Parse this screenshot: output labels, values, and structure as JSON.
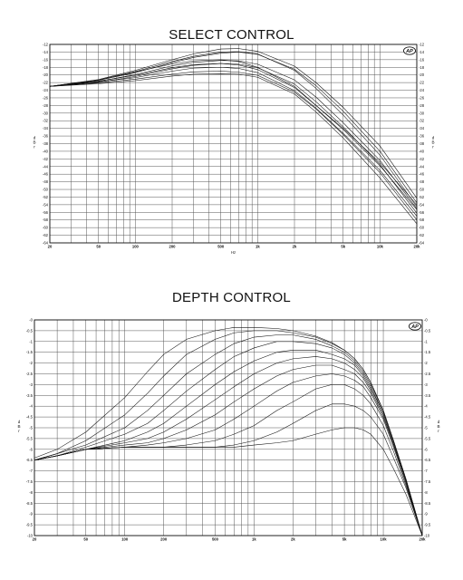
{
  "chart_data": [
    {
      "type": "line",
      "title": "SELECT CONTROL",
      "xlabel": "Hz",
      "ylabel": "dBr",
      "xscale": "log",
      "xlim": [
        20,
        20000
      ],
      "ylim": [
        -64,
        -12
      ],
      "grid": true,
      "logo": "AP",
      "y_ticks": [
        -12,
        -14,
        -16,
        -18,
        -20,
        -22,
        -24,
        -26,
        -28,
        -30,
        -32,
        -34,
        -36,
        -38,
        -40,
        -42,
        -44,
        -46,
        -48,
        -50,
        -52,
        -54,
        -56,
        -58,
        -60,
        -62,
        -64
      ],
      "x_ticks": [
        {
          "v": 20,
          "label": "20"
        },
        {
          "v": 50,
          "label": "50"
        },
        {
          "v": 100,
          "label": "100"
        },
        {
          "v": 200,
          "label": "200"
        },
        {
          "v": 500,
          "label": "500"
        },
        {
          "v": 1000,
          "label": "1k"
        },
        {
          "v": 2000,
          "label": "2k"
        },
        {
          "v": 5000,
          "label": "5k"
        },
        {
          "v": 10000,
          "label": "10k"
        },
        {
          "v": 20000,
          "label": "20k"
        }
      ],
      "series": [
        {
          "x": [
            20,
            50,
            100,
            200,
            300,
            500,
            700,
            1000,
            2000,
            3000,
            5000,
            10000,
            20000
          ],
          "y": [
            -23,
            -21.3,
            -19.2,
            -17.1,
            -16.3,
            -16.0,
            -16.5,
            -18.0,
            -23.0,
            -28.0,
            -34.0,
            -43.0,
            -54.0
          ]
        },
        {
          "x": [
            20,
            50,
            100,
            200,
            300,
            500,
            700,
            1000,
            2000,
            3000,
            5000,
            10000,
            20000
          ],
          "y": [
            -23,
            -21.6,
            -20.1,
            -18.1,
            -17.3,
            -17.0,
            -17.4,
            -18.6,
            -23.3,
            -28.0,
            -34.3,
            -43.8,
            -55.3
          ]
        },
        {
          "x": [
            20,
            50,
            100,
            200,
            300,
            500,
            700,
            1000,
            2000,
            3000,
            5000,
            10000,
            20000
          ],
          "y": [
            -23,
            -21.8,
            -20.7,
            -19.0,
            -18.2,
            -18.0,
            -18.3,
            -19.4,
            -24.1,
            -28.7,
            -35.3,
            -45.0,
            -57.0
          ]
        },
        {
          "x": [
            20,
            50,
            100,
            200,
            300,
            500,
            700,
            1000,
            2000,
            3000,
            5000,
            10000,
            20000
          ],
          "y": [
            -23,
            -22.1,
            -21.1,
            -19.8,
            -19.2,
            -19.0,
            -19.3,
            -20.1,
            -24.5,
            -28.9,
            -35.6,
            -45.6,
            -58.0
          ]
        },
        {
          "x": [
            20,
            50,
            100,
            200,
            300,
            500,
            700,
            1000,
            2000,
            3000,
            5000,
            10000,
            20000
          ],
          "y": [
            -23,
            -22.3,
            -21.5,
            -20.3,
            -19.8,
            -19.7,
            -19.8,
            -20.6,
            -25.0,
            -29.7,
            -36.5,
            -47.0,
            -59.0
          ]
        },
        {
          "x": [
            20,
            50,
            100,
            200,
            300,
            500,
            700,
            1000,
            2000,
            3000,
            5000,
            10000,
            20000
          ],
          "y": [
            -23,
            -21.4,
            -19.4,
            -16.8,
            -15.4,
            -14.3,
            -14.0,
            -14.6,
            -18.5,
            -22.8,
            -29.5,
            -40.0,
            -53.5
          ]
        },
        {
          "x": [
            20,
            50,
            100,
            200,
            300,
            500,
            700,
            1000,
            2000,
            3000,
            5000,
            10000,
            20000
          ],
          "y": [
            -23,
            -21.2,
            -18.8,
            -16.0,
            -14.5,
            -13.2,
            -13.1,
            -13.8,
            -17.7,
            -22.0,
            -28.5,
            -38.6,
            -52.3
          ]
        },
        {
          "x": [
            20,
            50,
            100,
            200,
            300,
            500,
            700,
            1000,
            2000,
            3000,
            5000,
            10000,
            20000
          ],
          "y": [
            -23,
            -21.3,
            -19.1,
            -16.5,
            -15.1,
            -14.0,
            -13.9,
            -14.5,
            -18.8,
            -23.5,
            -30.5,
            -41.0,
            -54.5
          ]
        },
        {
          "x": [
            20,
            50,
            100,
            200,
            300,
            500,
            700,
            1000,
            2000,
            3000,
            5000,
            10000,
            20000
          ],
          "y": [
            -23,
            -21.9,
            -20.4,
            -18.4,
            -17.5,
            -17.0,
            -17.2,
            -18.1,
            -22.4,
            -27.0,
            -33.6,
            -43.5,
            -56.2
          ]
        },
        {
          "x": [
            20,
            50,
            100,
            200,
            300,
            500,
            700,
            1000,
            2000,
            3000,
            5000,
            10000,
            20000
          ],
          "y": [
            -23,
            -21.7,
            -19.9,
            -17.6,
            -16.7,
            -16.2,
            -16.3,
            -17.2,
            -21.3,
            -25.8,
            -32.5,
            -42.4,
            -55.0
          ]
        }
      ]
    },
    {
      "type": "line",
      "title": "DEPTH CONTROL",
      "xlabel": "",
      "ylabel": "dBr",
      "xscale": "log",
      "xlim": [
        20,
        20000
      ],
      "ylim": [
        -10,
        0
      ],
      "grid": true,
      "logo": "AP",
      "y_ticks": [
        {
          "v": 0,
          "label": "-0"
        },
        {
          "v": -0.5,
          "label": "-0.5"
        },
        {
          "v": -1,
          "label": "-1"
        },
        {
          "v": -1.5,
          "label": "-1.5"
        },
        {
          "v": -2,
          "label": "-2"
        },
        {
          "v": -2.5,
          "label": "-2.5"
        },
        {
          "v": -3,
          "label": "-3"
        },
        {
          "v": -3.5,
          "label": "-3.5"
        },
        {
          "v": -4,
          "label": "-4"
        },
        {
          "v": -4.5,
          "label": "-4.5"
        },
        {
          "v": -5,
          "label": "-5"
        },
        {
          "v": -5.5,
          "label": "-5.5"
        },
        {
          "v": -6,
          "label": "-6"
        },
        {
          "v": -6.5,
          "label": "-6.5"
        },
        {
          "v": -7,
          "label": "-7"
        },
        {
          "v": -7.5,
          "label": "-7.5"
        },
        {
          "v": -8,
          "label": "-8"
        },
        {
          "v": -8.5,
          "label": "-8.5"
        },
        {
          "v": -9,
          "label": "-9"
        },
        {
          "v": -9.5,
          "label": "-9.5"
        },
        {
          "v": -10,
          "label": "-10"
        }
      ],
      "x_ticks": [
        {
          "v": 20,
          "label": "20"
        },
        {
          "v": 50,
          "label": "50"
        },
        {
          "v": 100,
          "label": "100"
        },
        {
          "v": 200,
          "label": "200"
        },
        {
          "v": 500,
          "label": "500"
        },
        {
          "v": 1000,
          "label": "1k"
        },
        {
          "v": 2000,
          "label": "2k"
        },
        {
          "v": 5000,
          "label": "5k"
        },
        {
          "v": 10000,
          "label": "10k"
        },
        {
          "v": 20000,
          "label": "20k"
        }
      ],
      "series": [
        {
          "x": [
            20,
            30,
            50,
            100,
            150,
            200,
            300,
            500,
            700,
            1000,
            1500,
            2000,
            3000,
            4000,
            5000,
            6000,
            7000,
            8000,
            10000,
            12000,
            15000,
            20000
          ],
          "y": [
            -6.5,
            -6.3,
            -6.0,
            -5.9,
            -5.9,
            -5.9,
            -5.9,
            -5.9,
            -5.9,
            -5.8,
            -5.7,
            -5.6,
            -5.3,
            -5.1,
            -5.0,
            -5.0,
            -5.1,
            -5.3,
            -6.0,
            -6.9,
            -8.1,
            -10.0
          ]
        },
        {
          "x": [
            20,
            30,
            50,
            100,
            150,
            200,
            300,
            500,
            700,
            1000,
            1500,
            2000,
            3000,
            4000,
            5000,
            6000,
            7000,
            8000,
            10000,
            12000,
            15000,
            20000
          ],
          "y": [
            -6.5,
            -6.3,
            -6.0,
            -5.9,
            -5.9,
            -5.9,
            -5.9,
            -5.9,
            -5.8,
            -5.6,
            -5.2,
            -4.8,
            -4.2,
            -3.9,
            -3.9,
            -4.0,
            -4.2,
            -4.5,
            -5.3,
            -6.4,
            -7.8,
            -10.0
          ]
        },
        {
          "x": [
            20,
            30,
            50,
            100,
            150,
            200,
            300,
            500,
            700,
            1000,
            1500,
            2000,
            3000,
            4000,
            5000,
            6000,
            7000,
            8000,
            10000,
            12000,
            15000,
            20000
          ],
          "y": [
            -6.5,
            -6.3,
            -6.0,
            -5.9,
            -5.9,
            -5.9,
            -5.8,
            -5.6,
            -5.3,
            -4.9,
            -4.2,
            -3.8,
            -3.2,
            -3.0,
            -3.0,
            -3.2,
            -3.5,
            -3.9,
            -4.9,
            -6.1,
            -7.7,
            -10.0
          ]
        },
        {
          "x": [
            20,
            30,
            50,
            100,
            150,
            200,
            300,
            500,
            700,
            1000,
            1500,
            2000,
            3000,
            4000,
            5000,
            6000,
            7000,
            8000,
            10000,
            12000,
            15000,
            20000
          ],
          "y": [
            -6.5,
            -6.3,
            -6.0,
            -5.9,
            -5.8,
            -5.7,
            -5.5,
            -5.1,
            -4.6,
            -4.0,
            -3.3,
            -2.9,
            -2.6,
            -2.5,
            -2.6,
            -2.8,
            -3.1,
            -3.6,
            -4.6,
            -5.9,
            -7.6,
            -10.0
          ]
        },
        {
          "x": [
            20,
            30,
            50,
            100,
            150,
            200,
            300,
            500,
            700,
            1000,
            1500,
            2000,
            3000,
            4000,
            5000,
            6000,
            7000,
            8000,
            10000,
            12000,
            15000,
            20000
          ],
          "y": [
            -6.5,
            -6.3,
            -6.0,
            -5.8,
            -5.7,
            -5.5,
            -5.1,
            -4.4,
            -3.8,
            -3.2,
            -2.6,
            -2.3,
            -2.1,
            -2.1,
            -2.3,
            -2.5,
            -2.9,
            -3.4,
            -4.5,
            -5.8,
            -7.5,
            -10.0
          ]
        },
        {
          "x": [
            20,
            30,
            50,
            100,
            150,
            200,
            300,
            500,
            700,
            1000,
            1500,
            2000,
            3000,
            4000,
            5000,
            6000,
            7000,
            8000,
            10000,
            12000,
            15000,
            20000
          ],
          "y": [
            -6.5,
            -6.3,
            -6.0,
            -5.7,
            -5.5,
            -5.2,
            -4.6,
            -3.7,
            -3.1,
            -2.5,
            -2.0,
            -1.8,
            -1.7,
            -1.8,
            -2.0,
            -2.3,
            -2.7,
            -3.3,
            -4.4,
            -5.8,
            -7.5,
            -10.0
          ]
        },
        {
          "x": [
            20,
            30,
            50,
            100,
            150,
            200,
            300,
            500,
            700,
            1000,
            1500,
            2000,
            3000,
            4000,
            5000,
            6000,
            7000,
            8000,
            10000,
            12000,
            15000,
            20000
          ],
          "y": [
            -6.5,
            -6.3,
            -6.0,
            -5.6,
            -5.2,
            -4.8,
            -4.0,
            -3.0,
            -2.4,
            -1.9,
            -1.5,
            -1.4,
            -1.4,
            -1.6,
            -1.8,
            -2.1,
            -2.6,
            -3.2,
            -4.3,
            -5.7,
            -7.5,
            -10.0
          ]
        },
        {
          "x": [
            20,
            30,
            50,
            100,
            150,
            200,
            300,
            500,
            700,
            1000,
            1500,
            2000,
            3000,
            4000,
            5000,
            6000,
            7000,
            8000,
            10000,
            12000,
            15000,
            20000
          ],
          "y": [
            -6.5,
            -6.3,
            -5.9,
            -5.3,
            -4.8,
            -4.2,
            -3.3,
            -2.3,
            -1.7,
            -1.3,
            -1.0,
            -1.0,
            -1.1,
            -1.3,
            -1.6,
            -2.0,
            -2.5,
            -3.1,
            -4.3,
            -5.7,
            -7.5,
            -10.0
          ]
        },
        {
          "x": [
            20,
            30,
            50,
            100,
            150,
            200,
            300,
            500,
            700,
            1000,
            1500,
            2000,
            3000,
            4000,
            5000,
            6000,
            7000,
            8000,
            10000,
            12000,
            15000,
            20000
          ],
          "y": [
            -6.5,
            -6.2,
            -5.8,
            -5.0,
            -4.2,
            -3.5,
            -2.5,
            -1.6,
            -1.1,
            -0.8,
            -0.7,
            -0.7,
            -0.9,
            -1.2,
            -1.5,
            -1.9,
            -2.4,
            -3.0,
            -4.2,
            -5.6,
            -7.4,
            -10.0
          ]
        },
        {
          "x": [
            20,
            30,
            50,
            100,
            150,
            200,
            300,
            500,
            700,
            1000,
            1500,
            2000,
            3000,
            4000,
            5000,
            6000,
            7000,
            8000,
            10000,
            12000,
            15000,
            20000
          ],
          "y": [
            -6.5,
            -6.2,
            -5.6,
            -4.4,
            -3.4,
            -2.6,
            -1.6,
            -0.9,
            -0.6,
            -0.5,
            -0.5,
            -0.6,
            -0.8,
            -1.1,
            -1.4,
            -1.8,
            -2.3,
            -2.9,
            -4.2,
            -5.6,
            -7.4,
            -10.0
          ]
        },
        {
          "x": [
            20,
            30,
            50,
            100,
            150,
            200,
            300,
            500,
            700,
            1000,
            1500,
            2000,
            3000,
            4000,
            5000,
            6000,
            7000,
            8000,
            10000,
            12000,
            15000,
            20000
          ],
          "y": [
            -6.4,
            -6.0,
            -5.2,
            -3.6,
            -2.4,
            -1.6,
            -0.9,
            -0.5,
            -0.35,
            -0.35,
            -0.4,
            -0.5,
            -0.75,
            -1.05,
            -1.4,
            -1.8,
            -2.3,
            -2.9,
            -4.2,
            -5.6,
            -7.4,
            -10.0
          ]
        }
      ]
    }
  ]
}
